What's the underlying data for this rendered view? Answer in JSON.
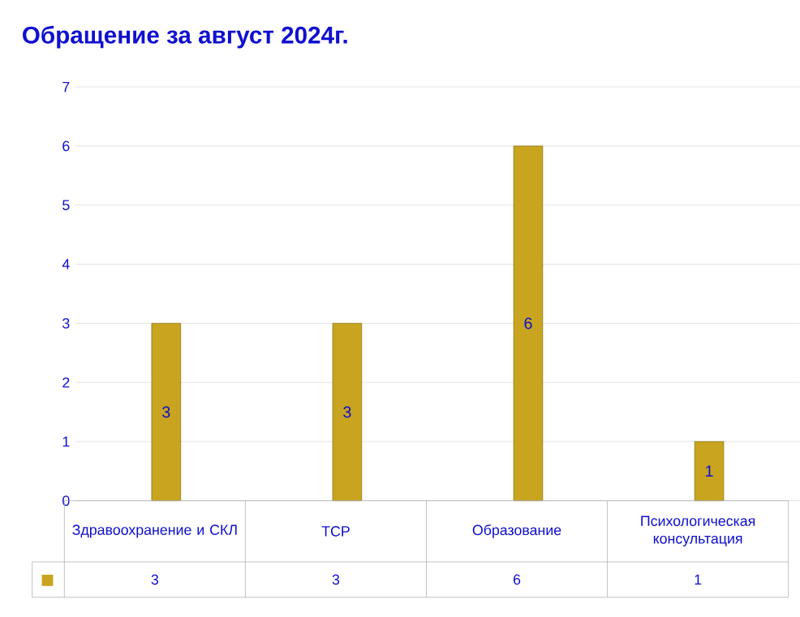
{
  "chart_data": {
    "type": "bar",
    "title": "Обращение за август  2024г.",
    "categories": [
      "Здравоохранение и СКЛ",
      "ТСР",
      "Образование",
      "Психологическая консультация"
    ],
    "values": [
      3,
      3,
      6,
      1
    ],
    "value_labels": [
      "3",
      "3",
      "6",
      "1"
    ],
    "color": "#c9a41e",
    "ylim": [
      0,
      7
    ],
    "yticks": [
      0,
      1,
      2,
      3,
      4,
      5,
      6,
      7
    ],
    "grid": "y"
  }
}
